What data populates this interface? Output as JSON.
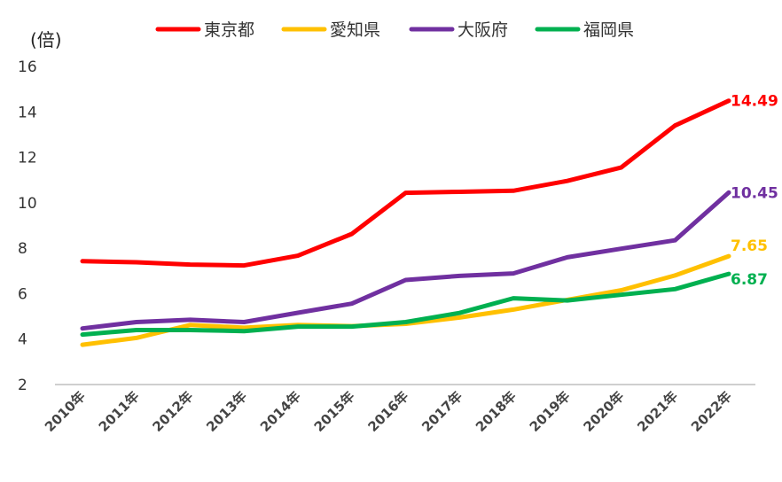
{
  "chart_data": {
    "type": "line",
    "unit_label": "(倍)",
    "categories": [
      "2010年",
      "2011年",
      "2012年",
      "2013年",
      "2014年",
      "2015年",
      "2016年",
      "2017年",
      "2018年",
      "2019年",
      "2020年",
      "2021年",
      "2022年"
    ],
    "ylim": [
      2,
      16
    ],
    "yticks": [
      "2",
      "4",
      "6",
      "8",
      "10",
      "12",
      "14",
      "16"
    ],
    "grid": false,
    "legend": "top",
    "series": [
      {
        "name": "東京都",
        "color": "#ff0000",
        "values": [
          7.43,
          7.38,
          7.28,
          7.24,
          7.67,
          8.63,
          10.44,
          10.48,
          10.53,
          10.96,
          11.55,
          13.4,
          14.49
        ],
        "end_label": "14.49"
      },
      {
        "name": "愛知県",
        "color": "#ffc000",
        "values": [
          3.75,
          4.05,
          4.62,
          4.5,
          4.62,
          4.57,
          4.67,
          4.95,
          5.3,
          5.73,
          6.15,
          6.8,
          7.65
        ],
        "end_label": "7.65"
      },
      {
        "name": "大阪府",
        "color": "#7030a0",
        "values": [
          4.47,
          4.75,
          4.85,
          4.75,
          5.16,
          5.56,
          6.6,
          6.78,
          6.89,
          7.6,
          7.98,
          8.35,
          10.45
        ],
        "end_label": "10.45"
      },
      {
        "name": "福岡県",
        "color": "#00b050",
        "values": [
          4.2,
          4.4,
          4.4,
          4.35,
          4.55,
          4.55,
          4.75,
          5.15,
          5.8,
          5.7,
          5.95,
          6.2,
          6.87
        ],
        "end_label": "6.87"
      }
    ]
  }
}
